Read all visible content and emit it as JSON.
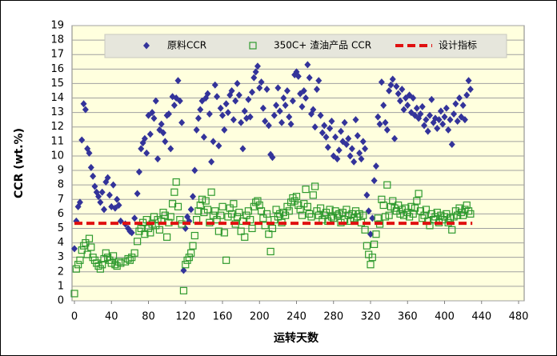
{
  "chart_data": {
    "type": "scatter",
    "x_label": "运转天数",
    "y_label": "CCR (wt.%)",
    "xlim": [
      0,
      480
    ],
    "ylim": [
      0,
      19
    ],
    "xticks": [
      0,
      40,
      80,
      120,
      160,
      200,
      240,
      280,
      320,
      360,
      400,
      440,
      480
    ],
    "yticks": [
      0,
      1,
      2,
      3,
      4,
      5,
      6,
      7,
      8,
      9,
      10,
      11,
      12,
      13,
      14,
      15,
      16,
      17,
      18,
      19
    ],
    "grid": true,
    "legend": "top",
    "x": [
      0,
      2,
      4,
      6,
      8,
      10,
      12,
      14,
      16,
      18,
      20,
      22,
      24,
      26,
      28,
      30,
      32,
      34,
      36,
      38,
      40,
      42,
      44,
      46,
      48,
      50,
      55,
      58,
      60,
      62,
      65,
      68,
      70,
      72,
      74,
      76,
      78,
      80,
      82,
      84,
      86,
      88,
      90,
      92,
      94,
      96,
      98,
      100,
      102,
      104,
      106,
      108,
      110,
      112,
      114,
      116,
      118,
      120,
      122,
      124,
      126,
      128,
      130,
      132,
      134,
      136,
      138,
      140,
      142,
      144,
      146,
      148,
      150,
      152,
      154,
      156,
      158,
      160,
      162,
      164,
      166,
      168,
      170,
      172,
      174,
      176,
      178,
      180,
      182,
      184,
      186,
      188,
      190,
      192,
      194,
      196,
      198,
      200,
      202,
      204,
      206,
      208,
      210,
      212,
      214,
      216,
      218,
      220,
      222,
      224,
      226,
      228,
      230,
      232,
      234,
      236,
      238,
      240,
      242,
      244,
      246,
      248,
      250,
      252,
      254,
      256,
      258,
      260,
      262,
      264,
      266,
      268,
      270,
      272,
      274,
      276,
      278,
      280,
      282,
      284,
      286,
      288,
      290,
      292,
      294,
      296,
      298,
      300,
      302,
      304,
      306,
      308,
      310,
      312,
      314,
      316,
      318,
      320,
      322,
      324,
      326,
      328,
      330,
      332,
      334,
      336,
      338,
      340,
      342,
      344,
      346,
      348,
      350,
      352,
      354,
      356,
      358,
      360,
      362,
      364,
      366,
      368,
      370,
      372,
      374,
      376,
      378,
      380,
      382,
      384,
      386,
      388,
      390,
      392,
      394,
      396,
      398,
      400,
      402,
      404,
      406,
      408,
      410,
      412,
      414,
      416,
      418,
      420,
      422,
      424,
      426,
      428
    ],
    "series": [
      {
        "name": "原料CCR",
        "type": "scatter",
        "marker": "diamond",
        "color": "#33339a",
        "values": [
          3.6,
          5.5,
          6.5,
          6.8,
          11.1,
          13.6,
          13.2,
          10.5,
          10.2,
          9.2,
          8.6,
          7.9,
          7.5,
          7.2,
          6.8,
          7.5,
          6.3,
          8.2,
          8.5,
          7.3,
          6.5,
          8.0,
          6.4,
          7.0,
          6.6,
          5.5,
          5.3,
          5.0,
          4.8,
          4.7,
          5.7,
          7.4,
          8.9,
          10.5,
          10.9,
          11.2,
          10.2,
          12.8,
          11.5,
          13.0,
          12.6,
          13.8,
          9.8,
          11.8,
          12.2,
          11.6,
          11.0,
          12.8,
          12.9,
          10.5,
          14.1,
          13.5,
          14.0,
          15.2,
          13.8,
          12.3,
          2.1,
          5.0,
          5.8,
          5.5,
          6.3,
          7.2,
          9.0,
          11.8,
          12.6,
          13.2,
          13.8,
          11.3,
          14.0,
          14.3,
          12.9,
          9.6,
          11.0,
          14.9,
          14.1,
          10.7,
          13.3,
          12.8,
          11.8,
          13.6,
          13.0,
          14.2,
          14.5,
          12.5,
          13.8,
          15.0,
          14.2,
          12.3,
          10.5,
          13.1,
          12.6,
          13.9,
          12.7,
          14.4,
          15.4,
          15.8,
          16.2,
          14.7,
          15.1,
          13.3,
          12.4,
          14.6,
          12.1,
          10.1,
          9.9,
          12.8,
          13.5,
          14.7,
          13.1,
          12.3,
          14.0,
          13.5,
          14.5,
          12.7,
          12.2,
          13.8,
          15.6,
          15.8,
          15.5,
          14.3,
          13.4,
          14.5,
          14.0,
          16.3,
          15.4,
          12.9,
          13.2,
          12.0,
          14.6,
          15.2,
          12.8,
          11.6,
          12.1,
          11.3,
          10.6,
          11.9,
          12.4,
          10.0,
          11.3,
          9.8,
          10.4,
          11.7,
          11.0,
          12.3,
          10.8,
          11.2,
          10.0,
          10.5,
          9.6,
          12.5,
          11.4,
          10.2,
          9.8,
          11.0,
          10.5,
          7.3,
          6.2,
          4.6,
          5.7,
          8.3,
          9.3,
          12.7,
          12.2,
          15.1,
          13.5,
          12.3,
          11.8,
          14.5,
          14.9,
          15.3,
          11.2,
          14.8,
          14.3,
          13.8,
          14.6,
          13.2,
          14.0,
          13.5,
          14.2,
          13.0,
          14.0,
          12.8,
          13.3,
          12.6,
          12.9,
          13.4,
          12.1,
          12.5,
          11.7,
          12.8,
          13.9,
          12.3,
          12.6,
          11.9,
          12.5,
          13.1,
          12.2,
          12.7,
          13.3,
          11.8,
          12.5,
          10.8,
          12.9,
          13.6,
          12.4,
          14.0,
          12.7,
          13.5,
          12.5,
          14.2,
          15.2,
          14.6
        ]
      },
      {
        "name": "350C+ 渣油产品 CCR",
        "type": "scatter",
        "marker": "square-open",
        "color": "#2f9a2f",
        "values": [
          0.5,
          2.2,
          2.5,
          2.8,
          3.5,
          3.8,
          4.0,
          3.2,
          4.3,
          3.7,
          3.0,
          2.8,
          2.6,
          2.4,
          2.2,
          2.5,
          2.9,
          3.3,
          3.0,
          2.8,
          2.6,
          3.1,
          2.5,
          2.4,
          2.7,
          2.6,
          2.7,
          2.9,
          2.8,
          3.0,
          3.3,
          4.1,
          4.8,
          5.0,
          5.4,
          4.6,
          5.6,
          5.0,
          4.7,
          5.3,
          5.8,
          5.2,
          5.6,
          4.9,
          5.5,
          6.1,
          5.9,
          4.4,
          5.4,
          5.8,
          6.7,
          7.5,
          8.2,
          6.5,
          5.6,
          5.3,
          0.7,
          2.5,
          2.8,
          3.0,
          3.3,
          3.8,
          4.5,
          5.6,
          6.2,
          6.6,
          7.0,
          6.1,
          6.9,
          6.3,
          5.4,
          7.5,
          5.9,
          6.2,
          5.6,
          4.8,
          5.9,
          6.5,
          4.7,
          2.8,
          5.8,
          6.4,
          6.0,
          6.7,
          5.3,
          5.8,
          6.1,
          4.8,
          5.5,
          4.4,
          5.9,
          6.2,
          5.6,
          5.0,
          6.5,
          6.8,
          6.9,
          6.6,
          6.2,
          5.7,
          5.2,
          6.0,
          4.6,
          3.4,
          5.0,
          5.6,
          6.3,
          5.8,
          6.0,
          5.4,
          6.1,
          5.9,
          6.5,
          6.2,
          6.8,
          7.1,
          6.9,
          7.2,
          6.6,
          6.3,
          5.9,
          6.7,
          7.7,
          6.5,
          6.0,
          5.8,
          7.3,
          7.9,
          6.2,
          5.9,
          6.4,
          5.6,
          5.9,
          6.1,
          5.5,
          6.3,
          5.8,
          5.7,
          6.2,
          5.9,
          6.0,
          5.4,
          6.1,
          5.6,
          6.3,
          5.9,
          5.5,
          6.0,
          5.7,
          6.2,
          5.8,
          6.0,
          5.4,
          5.9,
          4.9,
          3.8,
          3.2,
          2.5,
          3.0,
          3.9,
          4.6,
          5.7,
          5.3,
          7.0,
          6.6,
          5.8,
          8.0,
          5.9,
          6.5,
          6.9,
          6.4,
          6.2,
          6.6,
          6.0,
          6.3,
          5.9,
          6.4,
          6.1,
          5.8,
          6.5,
          6.0,
          6.4,
          6.9,
          7.4,
          6.2,
          5.7,
          5.9,
          6.3,
          5.5,
          5.2,
          6.0,
          5.6,
          5.8,
          6.1,
          5.4,
          5.9,
          5.6,
          5.8,
          6.0,
          5.4,
          5.7,
          4.9,
          5.8,
          6.2,
          5.9,
          6.4,
          6.1,
          5.9,
          6.3,
          6.6,
          6.2,
          6.0
        ]
      },
      {
        "name": "设计指标",
        "type": "line",
        "dash": true,
        "color": "#e01010",
        "x": [
          0,
          430
        ],
        "values": [
          5.35,
          5.35
        ]
      }
    ]
  }
}
